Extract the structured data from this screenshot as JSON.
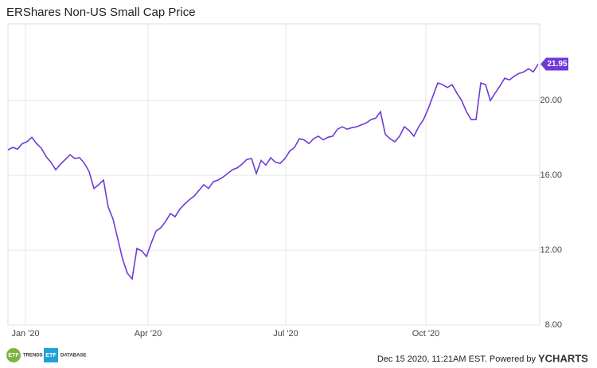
{
  "chart_data": {
    "type": "line",
    "title": "ERShares Non-US Small Cap Price",
    "series": [
      {
        "name": "ERShares Non-US Small Cap Price",
        "color": "#6f3ad6",
        "values": [
          17.36,
          17.5,
          17.4,
          17.7,
          17.8,
          18.04,
          17.7,
          17.45,
          17.0,
          16.7,
          16.3,
          16.6,
          16.85,
          17.1,
          16.9,
          16.95,
          16.65,
          16.2,
          15.3,
          15.5,
          15.75,
          14.3,
          13.66,
          12.6,
          11.53,
          10.77,
          10.47,
          12.09,
          11.96,
          11.66,
          12.38,
          13.02,
          13.2,
          13.53,
          13.96,
          13.79,
          14.2,
          14.47,
          14.7,
          14.9,
          15.2,
          15.5,
          15.3,
          15.66,
          15.75,
          15.9,
          16.1,
          16.3,
          16.4,
          16.6,
          16.85,
          16.9,
          16.1,
          16.8,
          16.55,
          16.94,
          16.7,
          16.64,
          16.9,
          17.3,
          17.5,
          17.96,
          17.9,
          17.7,
          17.96,
          18.1,
          17.9,
          18.04,
          18.1,
          18.47,
          18.6,
          18.47,
          18.55,
          18.6,
          18.7,
          18.8,
          18.98,
          19.06,
          19.4,
          18.2,
          17.96,
          17.8,
          18.1,
          18.6,
          18.4,
          18.1,
          18.6,
          18.98,
          19.57,
          20.25,
          20.94,
          20.85,
          20.7,
          20.85,
          20.4,
          20.0,
          19.4,
          18.98,
          18.98,
          20.94,
          20.85,
          20.0,
          20.4,
          20.77,
          21.2,
          21.1,
          21.3,
          21.45,
          21.53,
          21.7,
          21.53,
          21.95
        ]
      }
    ],
    "xlim": [
      0,
      111
    ],
    "xticks": [
      {
        "value": 3.67,
        "label": "Jan '20"
      },
      {
        "value": 29.33,
        "label": "Apr '20"
      },
      {
        "value": 58.17,
        "label": "Jul '20"
      },
      {
        "value": 87.5,
        "label": "Oct '20"
      }
    ],
    "ylim": [
      8,
      24.1
    ],
    "yticks": [
      {
        "value": 8,
        "label": "8.00"
      },
      {
        "value": 12,
        "label": "12.00"
      },
      {
        "value": 16,
        "label": "16.00"
      },
      {
        "value": 20,
        "label": "20.00"
      }
    ],
    "grid": true,
    "footer": {
      "timestamp": "Dec 15 2020, 11:21AM EST. Powered by",
      "brand": "YCHARTS",
      "logo1": "ETF",
      "logo1_text": "TRENDS",
      "logo2": "ETF",
      "logo2_text": "DATABASE"
    }
  }
}
